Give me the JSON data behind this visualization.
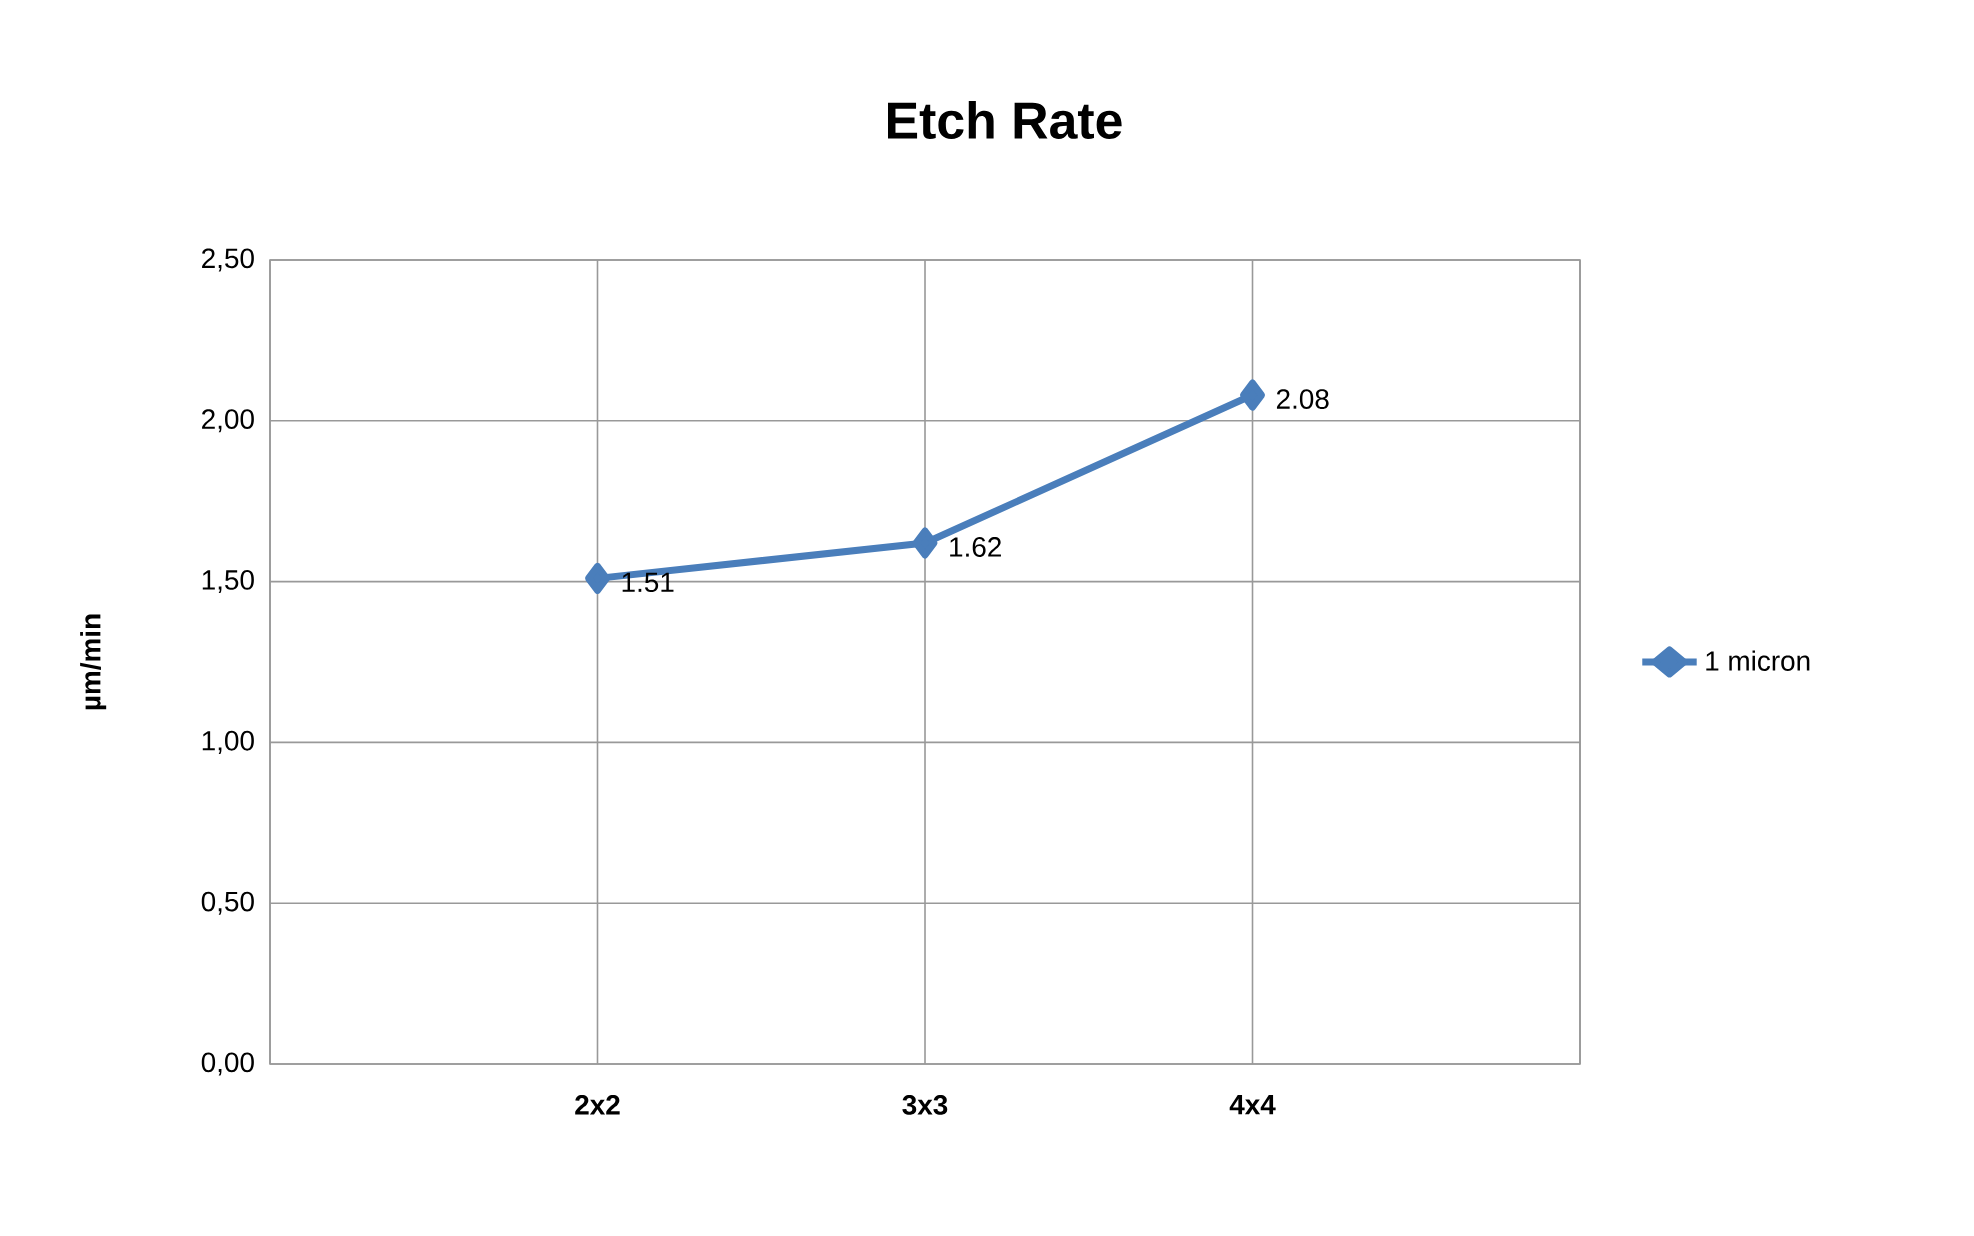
{
  "chart_data": {
    "type": "line",
    "title": "Etch Rate",
    "ylabel": "µm/min",
    "categories": [
      null,
      "2x2",
      "3x3",
      "4x4",
      null
    ],
    "series": [
      {
        "name": "1 micron",
        "color": "#4a7ebb",
        "values": [
          null,
          1.51,
          1.62,
          2.08,
          null
        ]
      }
    ],
    "ylim": [
      0,
      2.5
    ],
    "yticks": [
      {
        "value": 0,
        "label": "0,00"
      },
      {
        "value": 0.5,
        "label": "0,50"
      },
      {
        "value": 1,
        "label": "1,00"
      },
      {
        "value": 1.5,
        "label": "1,50"
      },
      {
        "value": 2,
        "label": "2,00"
      },
      {
        "value": 2.5,
        "label": "2,50"
      }
    ],
    "grid": true,
    "legend": "right",
    "marker": "diamond",
    "line_style": "solid",
    "data_labels": true
  }
}
